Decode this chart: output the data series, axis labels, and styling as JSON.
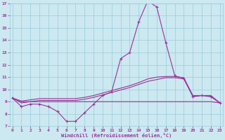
{
  "x": [
    0,
    1,
    2,
    3,
    4,
    5,
    6,
    7,
    8,
    9,
    10,
    11,
    12,
    13,
    14,
    15,
    16,
    17,
    18,
    19,
    20,
    21,
    22,
    23
  ],
  "line_main": [
    9.3,
    8.6,
    8.8,
    8.8,
    8.6,
    8.2,
    7.4,
    7.4,
    8.1,
    8.8,
    9.5,
    9.8,
    12.5,
    13.0,
    15.5,
    17.2,
    16.7,
    13.8,
    11.1,
    10.9,
    9.4,
    9.5,
    9.4,
    8.9
  ],
  "line_flat": [
    9.3,
    9.0,
    9.0,
    9.0,
    9.0,
    9.0,
    9.0,
    9.0,
    9.0,
    9.0,
    9.0,
    9.0,
    9.0,
    9.0,
    9.0,
    9.0,
    9.0,
    9.0,
    9.0,
    9.0,
    9.0,
    9.0,
    9.0,
    8.9
  ],
  "line_mid1": [
    9.3,
    8.9,
    9.0,
    9.1,
    9.1,
    9.1,
    9.1,
    9.1,
    9.2,
    9.35,
    9.55,
    9.75,
    9.95,
    10.15,
    10.4,
    10.65,
    10.8,
    10.95,
    10.95,
    10.85,
    9.45,
    9.5,
    9.45,
    8.9
  ],
  "line_mid2": [
    9.3,
    9.05,
    9.15,
    9.25,
    9.25,
    9.25,
    9.25,
    9.25,
    9.35,
    9.5,
    9.7,
    9.9,
    10.1,
    10.3,
    10.55,
    10.85,
    11.0,
    11.05,
    11.05,
    10.95,
    9.5,
    9.5,
    9.5,
    8.9
  ],
  "color": "#993399",
  "bg_color": "#cce8f0",
  "grid_color": "#99ccdd",
  "xlabel": "Windchill (Refroidissement éolien,°C)",
  "ylim": [
    7,
    17
  ],
  "xlim": [
    0,
    23
  ],
  "yticks": [
    7,
    8,
    9,
    10,
    11,
    12,
    13,
    14,
    15,
    16,
    17
  ],
  "xticks": [
    0,
    1,
    2,
    3,
    4,
    5,
    6,
    7,
    8,
    9,
    10,
    11,
    12,
    13,
    14,
    15,
    16,
    17,
    18,
    19,
    20,
    21,
    22,
    23
  ],
  "marker": "+",
  "markersize": 3,
  "linewidth": 0.8
}
